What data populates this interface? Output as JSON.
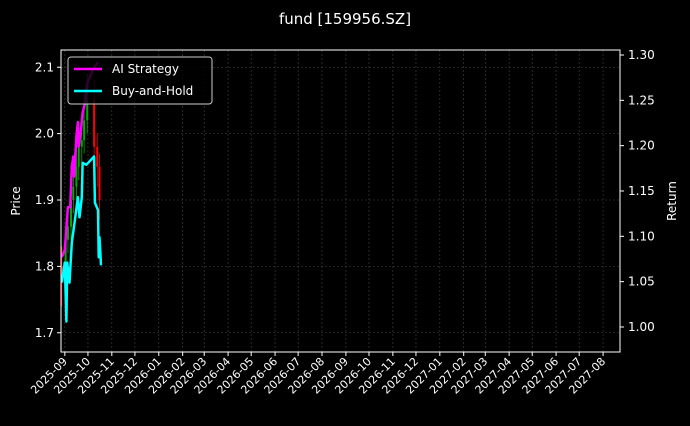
{
  "chart_data": {
    "type": "line",
    "title": "fund [159956.SZ]",
    "ylabel_left": "Price",
    "ylabel_right": "Return",
    "xlim": [
      "2025-08-27",
      "2027-08-23"
    ],
    "ylim_left": [
      1.671,
      2.126
    ],
    "ylim_right": [
      0.9724,
      1.3055
    ],
    "grid": true,
    "legend_position": "top-left",
    "x_ticks": [
      "2025-09",
      "2025-10",
      "2025-11",
      "2025-12",
      "2026-01",
      "2026-02",
      "2026-03",
      "2026-04",
      "2026-05",
      "2026-06",
      "2026-07",
      "2026-08",
      "2026-09",
      "2026-10",
      "2026-11",
      "2026-12",
      "2027-01",
      "2027-02",
      "2027-03",
      "2027-04",
      "2027-05",
      "2027-06",
      "2027-07",
      "2027-08"
    ],
    "y_ticks_left": [
      "1.7",
      "1.8",
      "1.9",
      "2.0",
      "2.1"
    ],
    "y_ticks_right": [
      "1.00",
      "1.05",
      "1.10",
      "1.15",
      "1.20",
      "1.25",
      "1.30"
    ],
    "series": [
      {
        "name": "AI Strategy",
        "color": "#ff00ff",
        "axis": "right",
        "x": [
          "2025-08-28",
          "2025-09-01",
          "2025-09-05",
          "2025-09-08",
          "2025-09-10",
          "2025-09-12",
          "2025-09-13",
          "2025-09-16",
          "2025-09-18",
          "2025-09-19",
          "2025-09-22",
          "2025-09-24",
          "2025-09-28",
          "2025-09-30",
          "2025-10-08",
          "2025-10-14"
        ],
        "values": [
          1.077,
          1.085,
          1.132,
          1.132,
          1.177,
          1.188,
          1.166,
          1.21,
          1.226,
          1.199,
          1.217,
          1.236,
          1.25,
          1.269,
          1.285,
          1.292
        ]
      },
      {
        "name": "Buy-and-Hold",
        "color": "#00ffff",
        "axis": "right",
        "x": [
          "2025-08-28",
          "2025-09-01",
          "2025-09-03",
          "2025-09-04",
          "2025-09-07",
          "2025-09-10",
          "2025-09-14",
          "2025-09-18",
          "2025-09-20",
          "2025-09-23",
          "2025-09-24",
          "2025-09-29",
          "2025-10-09",
          "2025-10-10",
          "2025-10-14",
          "2025-10-15",
          "2025-10-16",
          "2025-10-18"
        ],
        "values": [
          1.049,
          1.071,
          1.006,
          1.071,
          1.049,
          1.093,
          1.118,
          1.143,
          1.121,
          1.143,
          1.181,
          1.179,
          1.188,
          1.137,
          1.129,
          1.077,
          1.099,
          1.068
        ]
      }
    ],
    "candles": {
      "up_color": "#00aa00",
      "down_color": "#ff0000",
      "axis": "left",
      "x": [
        "2025-08-28",
        "2025-09-02",
        "2025-09-05",
        "2025-09-09",
        "2025-09-12",
        "2025-09-16",
        "2025-09-19",
        "2025-09-23",
        "2025-09-26",
        "2025-09-30",
        "2025-10-09",
        "2025-10-13",
        "2025-10-16"
      ],
      "open": [
        1.8,
        1.78,
        1.84,
        1.86,
        1.9,
        1.92,
        1.95,
        1.98,
        1.99,
        2.02,
        2.05,
        1.98,
        1.95
      ],
      "close": [
        1.78,
        1.84,
        1.86,
        1.9,
        1.92,
        1.95,
        1.98,
        1.99,
        2.02,
        2.05,
        1.98,
        1.95,
        1.9
      ],
      "high": [
        1.83,
        1.86,
        1.89,
        1.93,
        1.95,
        1.98,
        2.01,
        2.03,
        2.06,
        2.09,
        2.08,
        2.0,
        1.97
      ],
      "low": [
        1.74,
        1.76,
        1.82,
        1.84,
        1.88,
        1.9,
        1.93,
        1.95,
        1.97,
        2.0,
        1.96,
        1.92,
        1.87
      ]
    }
  }
}
